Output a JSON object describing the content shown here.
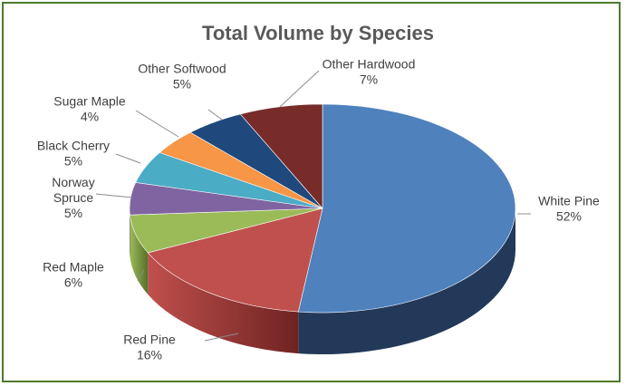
{
  "chart_data": {
    "type": "pie",
    "title": "Total Volume by Species",
    "style": "3d-exploded-none",
    "legend": "none",
    "slices": [
      {
        "name": "White Pine",
        "value": 52,
        "label": "52%",
        "color": "#4f81bd",
        "side": "#23395a"
      },
      {
        "name": "Red Pine",
        "value": 16,
        "label": "16%",
        "color": "#c0504d",
        "side": "#6e2321"
      },
      {
        "name": "Red Maple",
        "value": 6,
        "label": "6%",
        "color": "#9bbb59",
        "side": "#56702a"
      },
      {
        "name": "Norway Spruce",
        "label_lines": [
          "Norway",
          "Spruce"
        ],
        "value": 5,
        "label": "5%",
        "color": "#8064a2",
        "side": "#4a3762"
      },
      {
        "name": "Black Cherry",
        "value": 5,
        "label": "5%",
        "color": "#4bacc6",
        "side": "#22687a"
      },
      {
        "name": "Sugar Maple",
        "value": 4,
        "label": "4%",
        "color": "#f79646",
        "side": "#9c5316"
      },
      {
        "name": "Other Softwood",
        "value": 5,
        "label": "5%",
        "color": "#1f497d",
        "side": "#0f2540"
      },
      {
        "name": "Other Hardwood",
        "value": 7,
        "label": "7%",
        "color": "#772c2a",
        "side": "#3f1514"
      }
    ]
  }
}
